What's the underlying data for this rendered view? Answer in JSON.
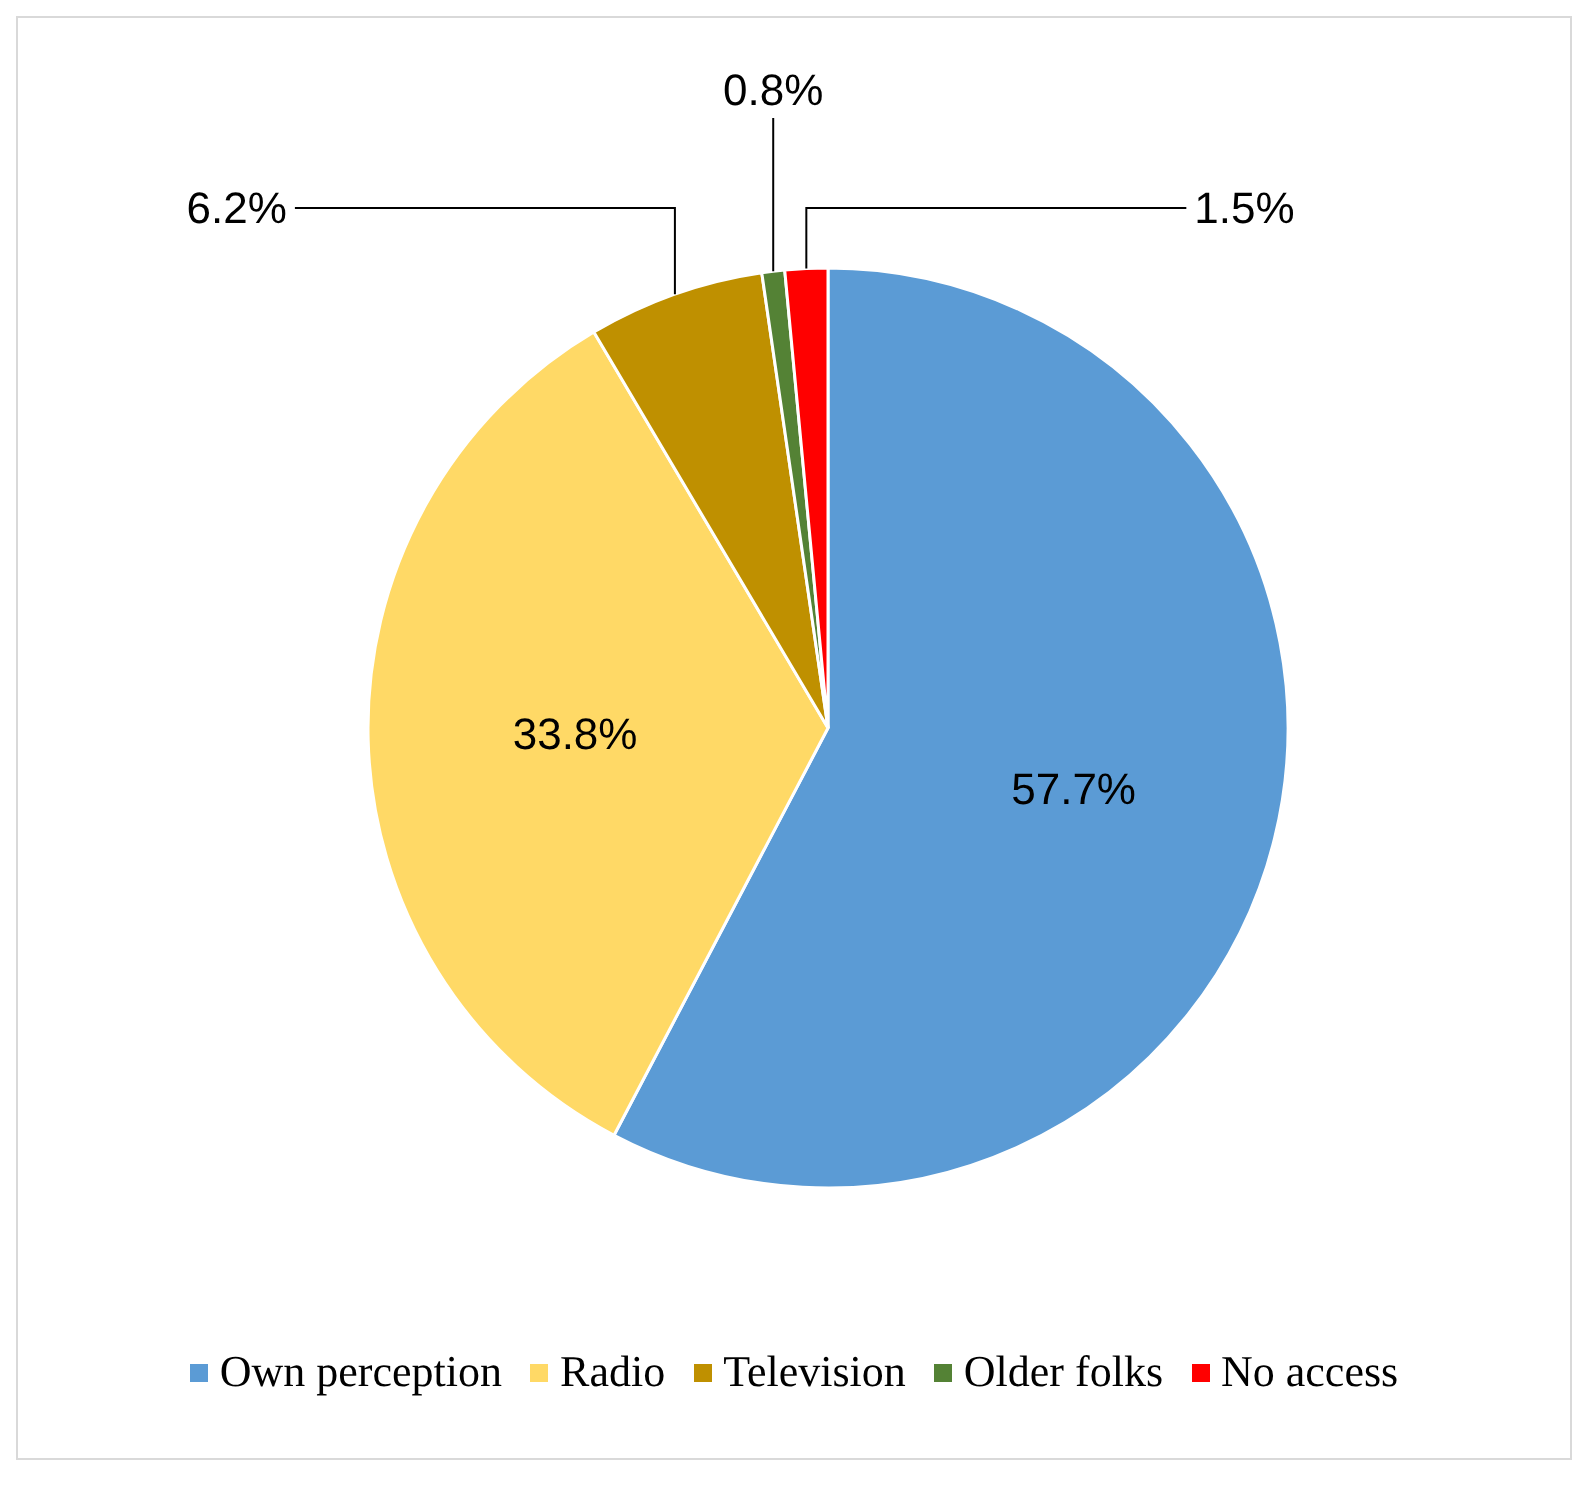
{
  "chart_data": {
    "type": "pie",
    "categories": [
      "Own perception",
      "Radio",
      "Television",
      "Older folks",
      "No access"
    ],
    "values": [
      57.7,
      33.8,
      6.2,
      0.8,
      1.5
    ],
    "colors": [
      "#5b9bd5",
      "#ffd966",
      "#bf9000",
      "#548235",
      "#ff0000"
    ],
    "value_labels": [
      "57.7%",
      "33.8%",
      "6.2%",
      "0.8%",
      "1.5%"
    ],
    "legend": "bottom"
  }
}
